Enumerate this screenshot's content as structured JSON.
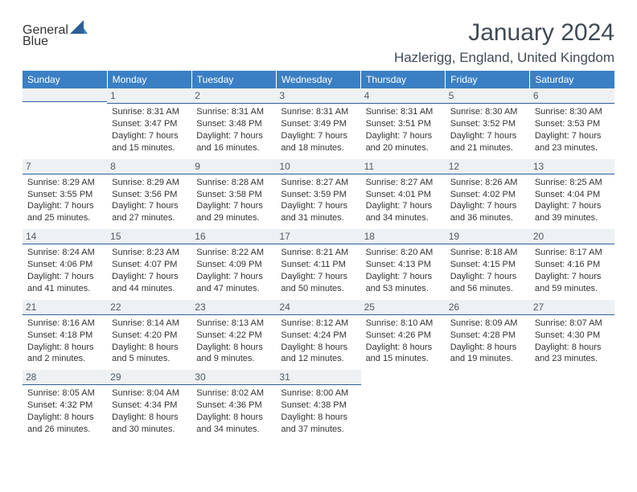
{
  "header": {
    "logo_general": "General",
    "logo_blue": "Blue",
    "month_title": "January 2024",
    "location": "Hazlerigg, England, United Kingdom"
  },
  "colors": {
    "header_bar": "#3a7fc4",
    "daynum_bg": "#eef1f3",
    "divider": "#2d5f97",
    "text": "#333333",
    "title_text": "#414b56",
    "logo_gray": "#6b7884",
    "logo_blue": "#3a7fc4"
  },
  "weekdays": [
    "Sunday",
    "Monday",
    "Tuesday",
    "Wednesday",
    "Thursday",
    "Friday",
    "Saturday"
  ],
  "weeks": [
    [
      null,
      {
        "n": "1",
        "sunrise": "Sunrise: 8:31 AM",
        "sunset": "Sunset: 3:47 PM",
        "day1": "Daylight: 7 hours",
        "day2": "and 15 minutes."
      },
      {
        "n": "2",
        "sunrise": "Sunrise: 8:31 AM",
        "sunset": "Sunset: 3:48 PM",
        "day1": "Daylight: 7 hours",
        "day2": "and 16 minutes."
      },
      {
        "n": "3",
        "sunrise": "Sunrise: 8:31 AM",
        "sunset": "Sunset: 3:49 PM",
        "day1": "Daylight: 7 hours",
        "day2": "and 18 minutes."
      },
      {
        "n": "4",
        "sunrise": "Sunrise: 8:31 AM",
        "sunset": "Sunset: 3:51 PM",
        "day1": "Daylight: 7 hours",
        "day2": "and 20 minutes."
      },
      {
        "n": "5",
        "sunrise": "Sunrise: 8:30 AM",
        "sunset": "Sunset: 3:52 PM",
        "day1": "Daylight: 7 hours",
        "day2": "and 21 minutes."
      },
      {
        "n": "6",
        "sunrise": "Sunrise: 8:30 AM",
        "sunset": "Sunset: 3:53 PM",
        "day1": "Daylight: 7 hours",
        "day2": "and 23 minutes."
      }
    ],
    [
      {
        "n": "7",
        "sunrise": "Sunrise: 8:29 AM",
        "sunset": "Sunset: 3:55 PM",
        "day1": "Daylight: 7 hours",
        "day2": "and 25 minutes."
      },
      {
        "n": "8",
        "sunrise": "Sunrise: 8:29 AM",
        "sunset": "Sunset: 3:56 PM",
        "day1": "Daylight: 7 hours",
        "day2": "and 27 minutes."
      },
      {
        "n": "9",
        "sunrise": "Sunrise: 8:28 AM",
        "sunset": "Sunset: 3:58 PM",
        "day1": "Daylight: 7 hours",
        "day2": "and 29 minutes."
      },
      {
        "n": "10",
        "sunrise": "Sunrise: 8:27 AM",
        "sunset": "Sunset: 3:59 PM",
        "day1": "Daylight: 7 hours",
        "day2": "and 31 minutes."
      },
      {
        "n": "11",
        "sunrise": "Sunrise: 8:27 AM",
        "sunset": "Sunset: 4:01 PM",
        "day1": "Daylight: 7 hours",
        "day2": "and 34 minutes."
      },
      {
        "n": "12",
        "sunrise": "Sunrise: 8:26 AM",
        "sunset": "Sunset: 4:02 PM",
        "day1": "Daylight: 7 hours",
        "day2": "and 36 minutes."
      },
      {
        "n": "13",
        "sunrise": "Sunrise: 8:25 AM",
        "sunset": "Sunset: 4:04 PM",
        "day1": "Daylight: 7 hours",
        "day2": "and 39 minutes."
      }
    ],
    [
      {
        "n": "14",
        "sunrise": "Sunrise: 8:24 AM",
        "sunset": "Sunset: 4:06 PM",
        "day1": "Daylight: 7 hours",
        "day2": "and 41 minutes."
      },
      {
        "n": "15",
        "sunrise": "Sunrise: 8:23 AM",
        "sunset": "Sunset: 4:07 PM",
        "day1": "Daylight: 7 hours",
        "day2": "and 44 minutes."
      },
      {
        "n": "16",
        "sunrise": "Sunrise: 8:22 AM",
        "sunset": "Sunset: 4:09 PM",
        "day1": "Daylight: 7 hours",
        "day2": "and 47 minutes."
      },
      {
        "n": "17",
        "sunrise": "Sunrise: 8:21 AM",
        "sunset": "Sunset: 4:11 PM",
        "day1": "Daylight: 7 hours",
        "day2": "and 50 minutes."
      },
      {
        "n": "18",
        "sunrise": "Sunrise: 8:20 AM",
        "sunset": "Sunset: 4:13 PM",
        "day1": "Daylight: 7 hours",
        "day2": "and 53 minutes."
      },
      {
        "n": "19",
        "sunrise": "Sunrise: 8:18 AM",
        "sunset": "Sunset: 4:15 PM",
        "day1": "Daylight: 7 hours",
        "day2": "and 56 minutes."
      },
      {
        "n": "20",
        "sunrise": "Sunrise: 8:17 AM",
        "sunset": "Sunset: 4:16 PM",
        "day1": "Daylight: 7 hours",
        "day2": "and 59 minutes."
      }
    ],
    [
      {
        "n": "21",
        "sunrise": "Sunrise: 8:16 AM",
        "sunset": "Sunset: 4:18 PM",
        "day1": "Daylight: 8 hours",
        "day2": "and 2 minutes."
      },
      {
        "n": "22",
        "sunrise": "Sunrise: 8:14 AM",
        "sunset": "Sunset: 4:20 PM",
        "day1": "Daylight: 8 hours",
        "day2": "and 5 minutes."
      },
      {
        "n": "23",
        "sunrise": "Sunrise: 8:13 AM",
        "sunset": "Sunset: 4:22 PM",
        "day1": "Daylight: 8 hours",
        "day2": "and 9 minutes."
      },
      {
        "n": "24",
        "sunrise": "Sunrise: 8:12 AM",
        "sunset": "Sunset: 4:24 PM",
        "day1": "Daylight: 8 hours",
        "day2": "and 12 minutes."
      },
      {
        "n": "25",
        "sunrise": "Sunrise: 8:10 AM",
        "sunset": "Sunset: 4:26 PM",
        "day1": "Daylight: 8 hours",
        "day2": "and 15 minutes."
      },
      {
        "n": "26",
        "sunrise": "Sunrise: 8:09 AM",
        "sunset": "Sunset: 4:28 PM",
        "day1": "Daylight: 8 hours",
        "day2": "and 19 minutes."
      },
      {
        "n": "27",
        "sunrise": "Sunrise: 8:07 AM",
        "sunset": "Sunset: 4:30 PM",
        "day1": "Daylight: 8 hours",
        "day2": "and 23 minutes."
      }
    ],
    [
      {
        "n": "28",
        "sunrise": "Sunrise: 8:05 AM",
        "sunset": "Sunset: 4:32 PM",
        "day1": "Daylight: 8 hours",
        "day2": "and 26 minutes."
      },
      {
        "n": "29",
        "sunrise": "Sunrise: 8:04 AM",
        "sunset": "Sunset: 4:34 PM",
        "day1": "Daylight: 8 hours",
        "day2": "and 30 minutes."
      },
      {
        "n": "30",
        "sunrise": "Sunrise: 8:02 AM",
        "sunset": "Sunset: 4:36 PM",
        "day1": "Daylight: 8 hours",
        "day2": "and 34 minutes."
      },
      {
        "n": "31",
        "sunrise": "Sunrise: 8:00 AM",
        "sunset": "Sunset: 4:38 PM",
        "day1": "Daylight: 8 hours",
        "day2": "and 37 minutes."
      },
      null,
      null,
      null
    ]
  ]
}
